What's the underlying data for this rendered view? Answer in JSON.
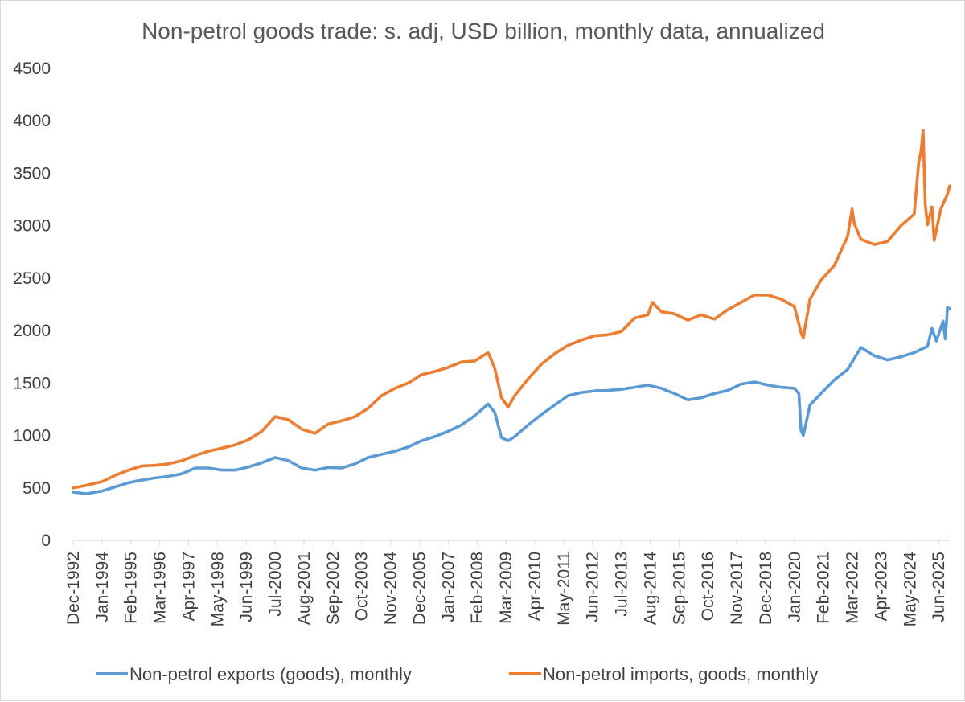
{
  "chart_data": {
    "type": "line",
    "title": "Non-petrol goods trade: s. adj, USD billion, monthly data, annualized",
    "xlabel": "",
    "ylabel": "",
    "ylim": [
      0,
      4500
    ],
    "yticks": [
      0,
      500,
      1000,
      1500,
      2000,
      2500,
      3000,
      3500,
      4000,
      4500
    ],
    "x_range": [
      "Dec-1992",
      "Nov-2025"
    ],
    "x_tick_labels": [
      "Dec-1992",
      "Jan-1994",
      "Feb-1995",
      "Mar-1996",
      "Apr-1997",
      "May-1998",
      "Jun-1999",
      "Jul-2000",
      "Aug-2001",
      "Sep-2002",
      "Oct-2003",
      "Nov-2004",
      "Dec-2005",
      "Jan-2007",
      "Feb-2008",
      "Mar-2009",
      "Apr-2010",
      "May-2011",
      "Jun-2012",
      "Jul-2013",
      "Aug-2014",
      "Sep-2015",
      "Oct-2016",
      "Nov-2017",
      "Dec-2018",
      "Jan-2020",
      "Feb-2021",
      "Mar-2022",
      "Apr-2023",
      "May-2024",
      "Jun-2025"
    ],
    "grid": false,
    "legend_position": "bottom",
    "series": [
      {
        "name": "Non-petrol exports (goods), monthly",
        "color": "#5b9bd5",
        "points": [
          [
            "Dec-1992",
            460
          ],
          [
            "Jun-1993",
            445
          ],
          [
            "Jan-1994",
            470
          ],
          [
            "Jul-1994",
            510
          ],
          [
            "Jan-1995",
            550
          ],
          [
            "Jul-1995",
            575
          ],
          [
            "Jan-1996",
            595
          ],
          [
            "Jul-1996",
            610
          ],
          [
            "Jan-1997",
            635
          ],
          [
            "Jul-1997",
            690
          ],
          [
            "Jan-1998",
            690
          ],
          [
            "Jul-1998",
            670
          ],
          [
            "Jan-1999",
            670
          ],
          [
            "Jul-1999",
            700
          ],
          [
            "Jan-2000",
            740
          ],
          [
            "Jul-2000",
            790
          ],
          [
            "Jan-2001",
            760
          ],
          [
            "Jul-2001",
            690
          ],
          [
            "Jan-2002",
            670
          ],
          [
            "Jul-2002",
            695
          ],
          [
            "Jan-2003",
            690
          ],
          [
            "Jul-2003",
            730
          ],
          [
            "Jan-2004",
            790
          ],
          [
            "Jul-2004",
            820
          ],
          [
            "Jan-2005",
            850
          ],
          [
            "Jul-2005",
            890
          ],
          [
            "Jan-2006",
            950
          ],
          [
            "Jul-2006",
            990
          ],
          [
            "Jan-2007",
            1040
          ],
          [
            "Jul-2007",
            1100
          ],
          [
            "Jan-2008",
            1190
          ],
          [
            "Jul-2008",
            1300
          ],
          [
            "Oct-2008",
            1220
          ],
          [
            "Jan-2009",
            980
          ],
          [
            "Apr-2009",
            950
          ],
          [
            "Jul-2009",
            990
          ],
          [
            "Jan-2010",
            1100
          ],
          [
            "Jul-2010",
            1200
          ],
          [
            "Jan-2011",
            1290
          ],
          [
            "Jul-2011",
            1380
          ],
          [
            "Jan-2012",
            1410
          ],
          [
            "Jul-2012",
            1425
          ],
          [
            "Jan-2013",
            1430
          ],
          [
            "Jul-2013",
            1440
          ],
          [
            "Jan-2014",
            1460
          ],
          [
            "Jul-2014",
            1480
          ],
          [
            "Jan-2015",
            1450
          ],
          [
            "Jul-2015",
            1400
          ],
          [
            "Jan-2016",
            1340
          ],
          [
            "Jul-2016",
            1360
          ],
          [
            "Jan-2017",
            1400
          ],
          [
            "Jul-2017",
            1430
          ],
          [
            "Jan-2018",
            1490
          ],
          [
            "Jul-2018",
            1510
          ],
          [
            "Jan-2019",
            1480
          ],
          [
            "Jul-2019",
            1460
          ],
          [
            "Jan-2020",
            1450
          ],
          [
            "Mar-2020",
            1400
          ],
          [
            "Apr-2020",
            1050
          ],
          [
            "May-2020",
            1000
          ],
          [
            "Aug-2020",
            1290
          ],
          [
            "Jan-2021",
            1400
          ],
          [
            "Jul-2021",
            1530
          ],
          [
            "Jan-2022",
            1630
          ],
          [
            "Jul-2022",
            1840
          ],
          [
            "Jan-2023",
            1760
          ],
          [
            "Jul-2023",
            1720
          ],
          [
            "Jan-2024",
            1750
          ],
          [
            "Jul-2024",
            1790
          ],
          [
            "Jan-2025",
            1850
          ],
          [
            "Mar-2025",
            2020
          ],
          [
            "May-2025",
            1900
          ],
          [
            "Aug-2025",
            2090
          ],
          [
            "Sep-2025",
            1920
          ],
          [
            "Oct-2025",
            2220
          ],
          [
            "Nov-2025",
            2210
          ]
        ]
      },
      {
        "name": "Non-petrol imports, goods, monthly",
        "color": "#ed7d31",
        "points": [
          [
            "Dec-1992",
            500
          ],
          [
            "Jun-1993",
            525
          ],
          [
            "Jan-1994",
            560
          ],
          [
            "Jul-1994",
            620
          ],
          [
            "Jan-1995",
            670
          ],
          [
            "Jul-1995",
            710
          ],
          [
            "Jan-1996",
            715
          ],
          [
            "Jul-1996",
            730
          ],
          [
            "Jan-1997",
            760
          ],
          [
            "Jul-1997",
            810
          ],
          [
            "Jan-1998",
            850
          ],
          [
            "Jul-1998",
            880
          ],
          [
            "Jan-1999",
            910
          ],
          [
            "Jul-1999",
            960
          ],
          [
            "Jan-2000",
            1040
          ],
          [
            "Jul-2000",
            1180
          ],
          [
            "Jan-2001",
            1150
          ],
          [
            "Jul-2001",
            1060
          ],
          [
            "Jan-2002",
            1020
          ],
          [
            "Jul-2002",
            1110
          ],
          [
            "Jan-2003",
            1140
          ],
          [
            "Jul-2003",
            1180
          ],
          [
            "Jan-2004",
            1260
          ],
          [
            "Jul-2004",
            1380
          ],
          [
            "Jan-2005",
            1450
          ],
          [
            "Jul-2005",
            1500
          ],
          [
            "Jan-2006",
            1580
          ],
          [
            "Jul-2006",
            1610
          ],
          [
            "Jan-2007",
            1650
          ],
          [
            "Jul-2007",
            1700
          ],
          [
            "Jan-2008",
            1710
          ],
          [
            "Jul-2008",
            1790
          ],
          [
            "Oct-2008",
            1640
          ],
          [
            "Jan-2009",
            1360
          ],
          [
            "Apr-2009",
            1270
          ],
          [
            "Jul-2009",
            1380
          ],
          [
            "Jan-2010",
            1540
          ],
          [
            "Jul-2010",
            1680
          ],
          [
            "Jan-2011",
            1780
          ],
          [
            "Jul-2011",
            1860
          ],
          [
            "Jan-2012",
            1910
          ],
          [
            "Jul-2012",
            1950
          ],
          [
            "Jan-2013",
            1960
          ],
          [
            "Jul-2013",
            1990
          ],
          [
            "Jan-2014",
            2120
          ],
          [
            "Jul-2014",
            2150
          ],
          [
            "Sep-2014",
            2270
          ],
          [
            "Jan-2015",
            2180
          ],
          [
            "Jul-2015",
            2160
          ],
          [
            "Jan-2016",
            2100
          ],
          [
            "Jul-2016",
            2150
          ],
          [
            "Jan-2017",
            2110
          ],
          [
            "Jul-2017",
            2200
          ],
          [
            "Jan-2018",
            2270
          ],
          [
            "Jul-2018",
            2340
          ],
          [
            "Jan-2019",
            2340
          ],
          [
            "Jul-2019",
            2300
          ],
          [
            "Jan-2020",
            2230
          ],
          [
            "Apr-2020",
            1980
          ],
          [
            "May-2020",
            1930
          ],
          [
            "Aug-2020",
            2300
          ],
          [
            "Jan-2021",
            2480
          ],
          [
            "Jul-2021",
            2620
          ],
          [
            "Jan-2022",
            2900
          ],
          [
            "Mar-2022",
            3160
          ],
          [
            "Apr-2022",
            3020
          ],
          [
            "Jul-2022",
            2870
          ],
          [
            "Jan-2023",
            2820
          ],
          [
            "Jul-2023",
            2850
          ],
          [
            "Jan-2024",
            3000
          ],
          [
            "Jul-2024",
            3110
          ],
          [
            "Sep-2024",
            3600
          ],
          [
            "Oct-2024",
            3700
          ],
          [
            "Nov-2024",
            3910
          ],
          [
            "Dec-2024",
            3200
          ],
          [
            "Jan-2025",
            3010
          ],
          [
            "Mar-2025",
            3180
          ],
          [
            "Apr-2025",
            2860
          ],
          [
            "Jul-2025",
            3160
          ],
          [
            "Oct-2025",
            3300
          ],
          [
            "Nov-2025",
            3380
          ]
        ]
      }
    ]
  }
}
